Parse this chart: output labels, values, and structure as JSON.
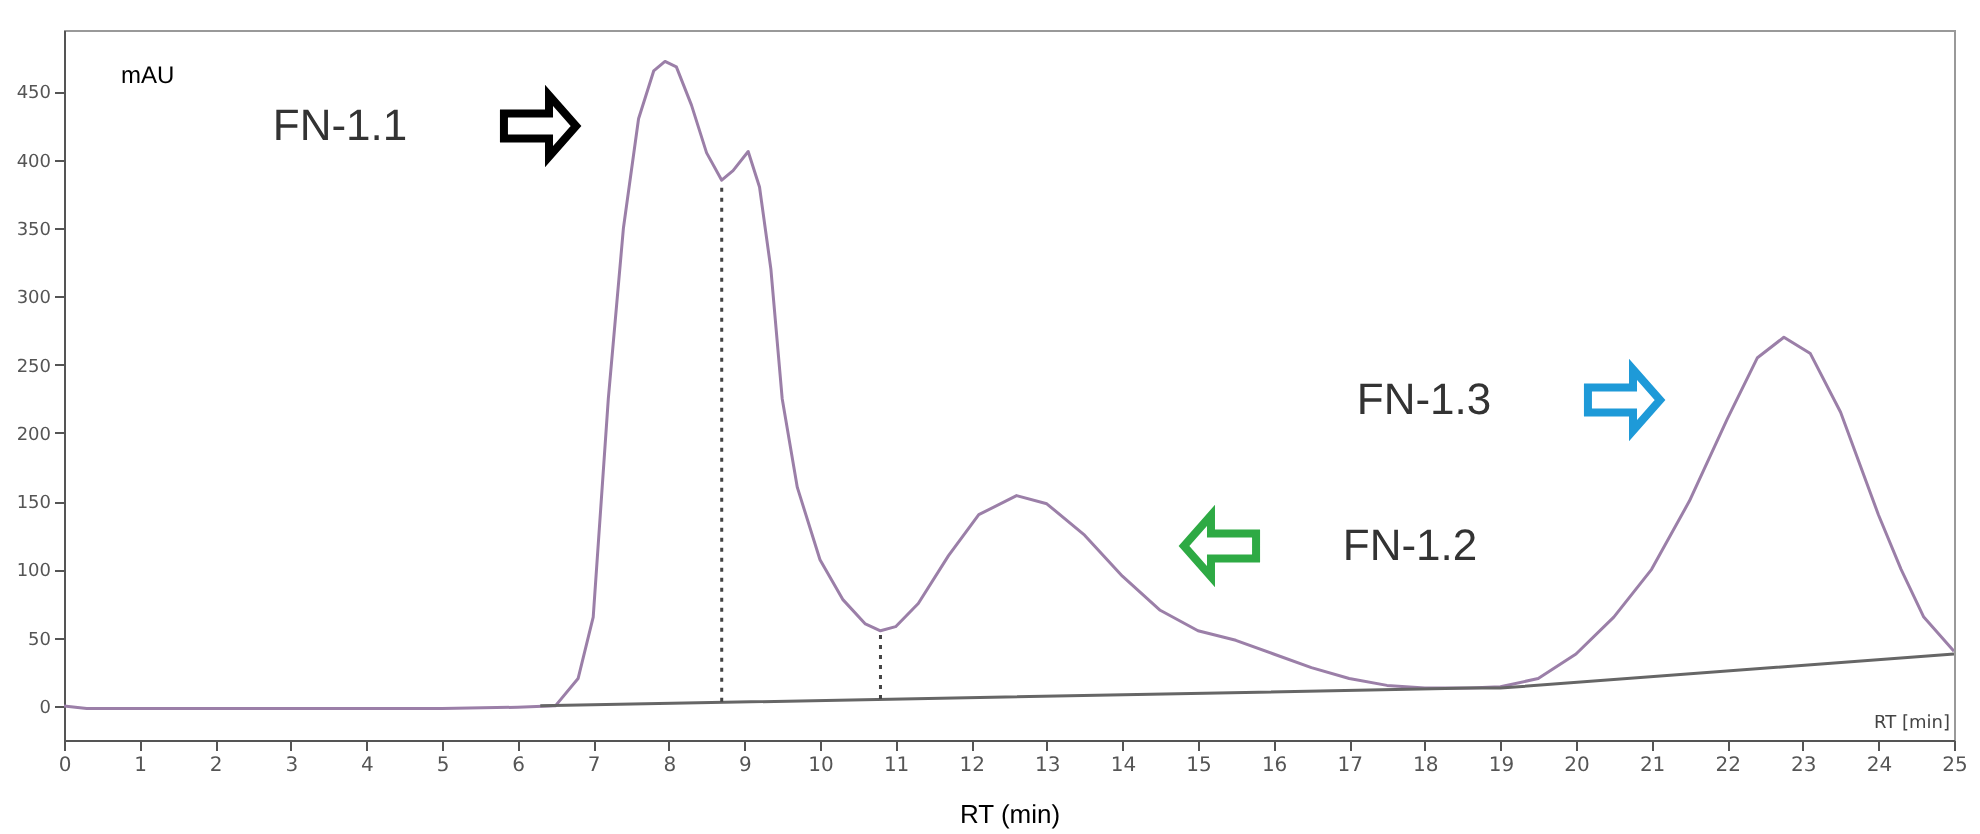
{
  "chart_data": {
    "type": "line",
    "xlabel": "RT (min)",
    "ylabel": "mAU",
    "xlim": [
      0,
      25
    ],
    "ylim": [
      -25,
      495
    ],
    "xticks": [
      0,
      1,
      2,
      3,
      4,
      5,
      6,
      7,
      8,
      9,
      10,
      11,
      12,
      13,
      14,
      15,
      16,
      17,
      18,
      19,
      20,
      21,
      22,
      23,
      24,
      25
    ],
    "yticks": [
      0,
      50,
      100,
      150,
      200,
      250,
      300,
      350,
      400,
      450
    ],
    "grid": false,
    "marker": "none",
    "series": [
      {
        "color": "#9b7fa8",
        "line_style": "solid",
        "x": [
          0,
          0.3,
          1,
          3,
          5,
          6,
          6.5,
          6.8,
          7,
          7.2,
          7.4,
          7.6,
          7.8,
          7.95,
          8.1,
          8.3,
          8.5,
          8.7,
          8.85,
          9.05,
          9.2,
          9.35,
          9.5,
          9.7,
          10,
          10.3,
          10.6,
          10.8,
          11,
          11.3,
          11.7,
          12.1,
          12.6,
          13,
          13.5,
          14,
          14.5,
          15,
          15.5,
          16,
          16.5,
          17,
          17.5,
          18,
          18.6,
          19,
          19.5,
          20,
          20.5,
          21,
          21.5,
          22,
          22.4,
          22.75,
          23.1,
          23.5,
          24,
          24.3,
          24.6,
          25
        ],
        "values": [
          0,
          -2,
          -2,
          -2,
          -2,
          -1,
          0,
          20,
          65,
          225,
          350,
          430,
          465,
          472,
          468,
          440,
          405,
          385,
          392,
          406,
          380,
          320,
          225,
          160,
          107,
          78,
          60,
          55,
          58,
          75,
          110,
          140,
          154,
          148,
          125,
          95,
          70,
          55,
          48,
          38,
          28,
          20,
          15,
          13,
          13,
          14,
          20,
          38,
          65,
          100,
          150,
          210,
          255,
          270,
          258,
          215,
          140,
          100,
          65,
          40
        ]
      },
      {
        "color": "#666666",
        "line_style": "solid",
        "x": [
          6.3,
          18.6,
          19,
          25
        ],
        "values": [
          0,
          13,
          13,
          38
        ]
      },
      {
        "color": "#444444",
        "line_style": "dotted",
        "x": [
          8.7,
          8.7
        ],
        "values": [
          3,
          383
        ]
      },
      {
        "color": "#444444",
        "line_style": "dotted",
        "x": [
          10.8,
          10.8
        ],
        "values": [
          5,
          55
        ]
      }
    ],
    "annotations": [
      "FN-1.1",
      "FN-1.2",
      "FN-1.3",
      "RT [min]"
    ]
  }
}
